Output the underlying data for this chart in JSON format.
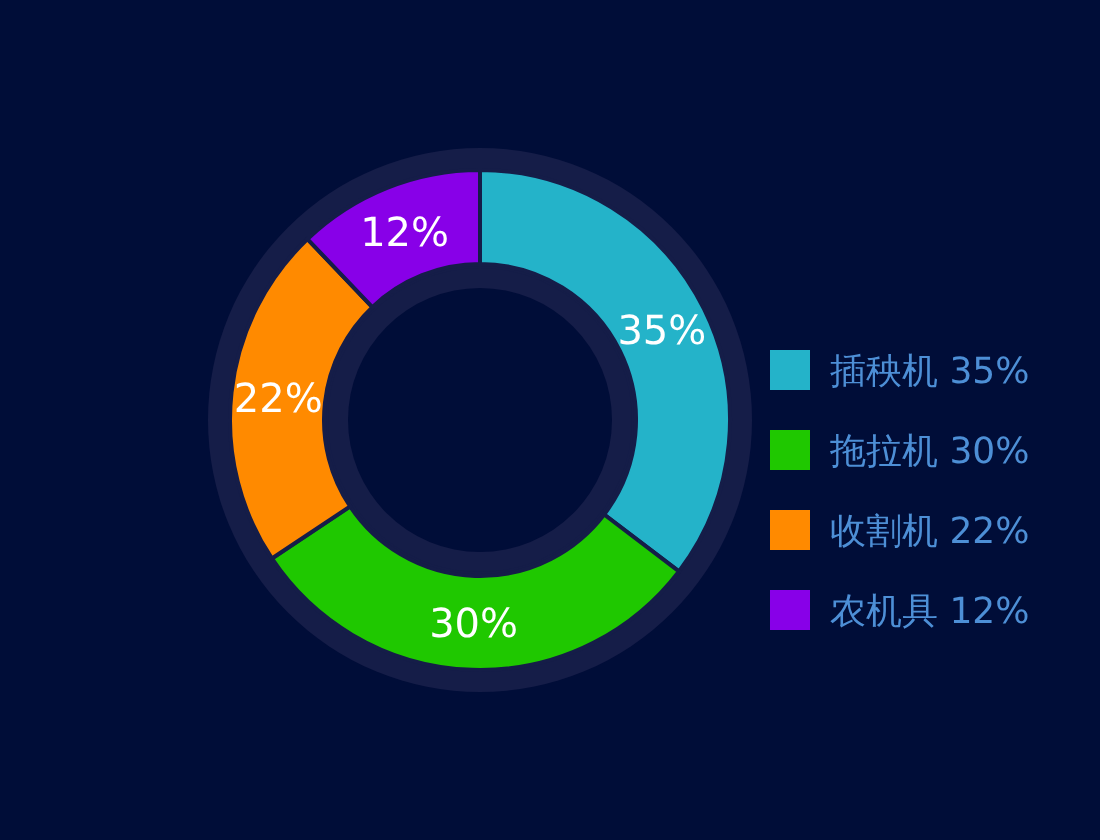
{
  "chart_data": {
    "type": "donut",
    "categories": [
      "插秧机",
      "拖拉机",
      "收割机",
      "农机具"
    ],
    "values": [
      35,
      30,
      22,
      12
    ],
    "colors": [
      "#24b3c9",
      "#1fc800",
      "#ff8a00",
      "#8800e8"
    ],
    "value_labels": [
      "35%",
      "30%",
      "22%",
      "12%"
    ],
    "legend": "right"
  }
}
